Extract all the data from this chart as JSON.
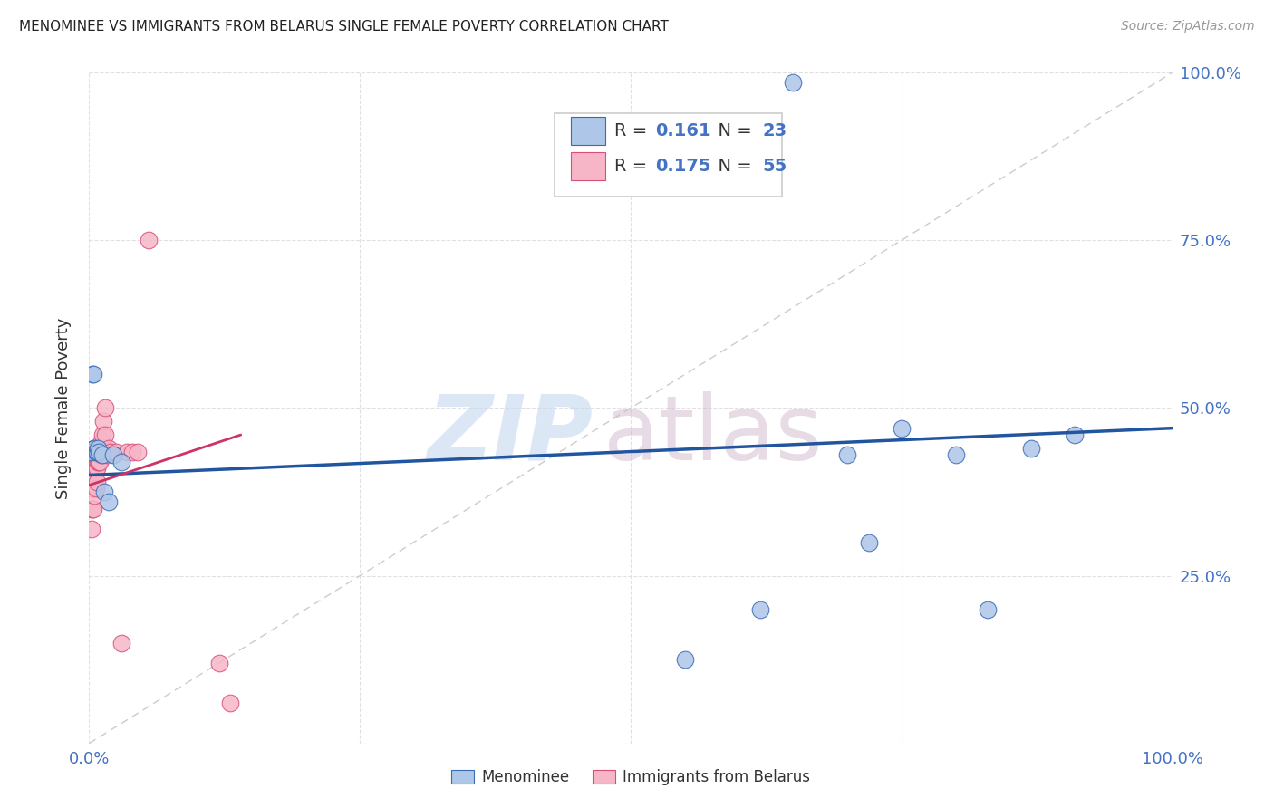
{
  "title": "MENOMINEE VS IMMIGRANTS FROM BELARUS SINGLE FEMALE POVERTY CORRELATION CHART",
  "source": "Source: ZipAtlas.com",
  "ylabel": "Single Female Poverty",
  "xlim": [
    0,
    1
  ],
  "ylim": [
    0,
    1
  ],
  "color_blue": "#aec6e8",
  "color_pink": "#f7b6c8",
  "color_blue_dark": "#3a6cb5",
  "color_pink_dark": "#d94f7a",
  "color_blue_text": "#4472c4",
  "diagonal_color": "#cccccc",
  "trendline_blue_color": "#2255a0",
  "trendline_pink_color": "#cc3366",
  "background_color": "#ffffff",
  "grid_color": "#e0e0e0",
  "menominee_x": [
    0.002,
    0.003,
    0.004,
    0.005,
    0.006,
    0.007,
    0.008,
    0.009,
    0.012,
    0.014,
    0.018,
    0.022,
    0.03,
    0.55,
    0.62,
    0.65,
    0.7,
    0.72,
    0.75,
    0.8,
    0.83,
    0.87,
    0.91
  ],
  "menominee_y": [
    0.435,
    0.55,
    0.55,
    0.44,
    0.435,
    0.435,
    0.44,
    0.435,
    0.43,
    0.375,
    0.36,
    0.43,
    0.42,
    0.125,
    0.2,
    0.985,
    0.43,
    0.3,
    0.47,
    0.43,
    0.2,
    0.44,
    0.46
  ],
  "belarus_x": [
    0.001,
    0.001,
    0.001,
    0.002,
    0.002,
    0.002,
    0.002,
    0.002,
    0.003,
    0.003,
    0.003,
    0.003,
    0.003,
    0.004,
    0.004,
    0.004,
    0.004,
    0.004,
    0.004,
    0.005,
    0.005,
    0.005,
    0.005,
    0.005,
    0.006,
    0.006,
    0.006,
    0.006,
    0.007,
    0.007,
    0.007,
    0.007,
    0.008,
    0.008,
    0.009,
    0.009,
    0.01,
    0.01,
    0.011,
    0.011,
    0.012,
    0.013,
    0.015,
    0.015,
    0.016,
    0.018,
    0.02,
    0.025,
    0.03,
    0.035,
    0.04,
    0.045,
    0.055,
    0.12,
    0.13
  ],
  "belarus_y": [
    0.435,
    0.42,
    0.4,
    0.42,
    0.4,
    0.38,
    0.35,
    0.32,
    0.43,
    0.42,
    0.4,
    0.38,
    0.35,
    0.44,
    0.43,
    0.42,
    0.4,
    0.38,
    0.35,
    0.44,
    0.43,
    0.41,
    0.39,
    0.37,
    0.44,
    0.43,
    0.41,
    0.38,
    0.44,
    0.43,
    0.41,
    0.39,
    0.44,
    0.42,
    0.44,
    0.42,
    0.44,
    0.42,
    0.45,
    0.43,
    0.46,
    0.48,
    0.5,
    0.46,
    0.43,
    0.44,
    0.435,
    0.435,
    0.15,
    0.435,
    0.435,
    0.435,
    0.75,
    0.12,
    0.06
  ],
  "menominee_trendline_x": [
    0.0,
    1.0
  ],
  "menominee_trendline_y": [
    0.4,
    0.47
  ],
  "belarus_trendline_x": [
    0.0,
    0.14
  ],
  "belarus_trendline_y": [
    0.385,
    0.46
  ],
  "watermark_zip_color": "#c5d8f0",
  "watermark_atlas_color": "#d0b8cc"
}
